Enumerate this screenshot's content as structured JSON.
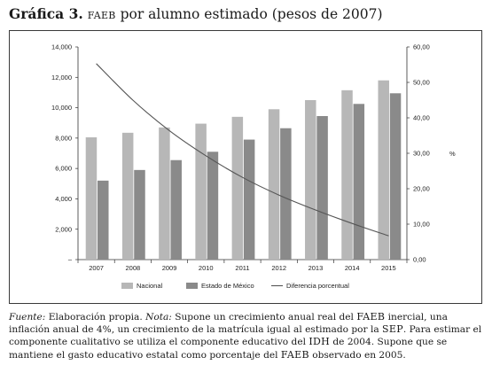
{
  "title": {
    "prefix": "Gráfica 3.",
    "abbr": "FAEB",
    "rest": " por alumno estimado (pesos de 2007)"
  },
  "chart_data": {
    "type": "bar",
    "categories": [
      "2007",
      "2008",
      "2009",
      "2010",
      "2011",
      "2012",
      "2013",
      "2014",
      "2015"
    ],
    "series": [
      {
        "name": "Nacional",
        "type": "bar",
        "axis": "left",
        "color": "#b7b7b7",
        "values": [
          8050,
          8350,
          8700,
          8950,
          9400,
          9900,
          10500,
          11150,
          11800
        ]
      },
      {
        "name": "Estado de México",
        "type": "bar",
        "axis": "left",
        "color": "#8a8a8a",
        "values": [
          5200,
          5900,
          6550,
          7100,
          7900,
          8650,
          9450,
          10250,
          10950
        ]
      },
      {
        "name": "Diferencia porcentual",
        "type": "line",
        "axis": "right",
        "color": "#555555",
        "values": [
          55.3,
          45.0,
          36.4,
          29.3,
          23.2,
          18.2,
          14.0,
          10.2,
          6.7
        ]
      }
    ],
    "y_left": {
      "ticks": [
        "–",
        "2,000",
        "4,000",
        "6,000",
        "8,000",
        "10,000",
        "12,000",
        "14,000"
      ],
      "lim": [
        0,
        14000
      ]
    },
    "y_right": {
      "ticks": [
        "0,00",
        "10,00",
        "20,00",
        "30,00",
        "40,00",
        "50,00",
        "60,00"
      ],
      "lim": [
        0,
        60
      ],
      "label": "%"
    },
    "legend_position": "bottom",
    "grid": false
  },
  "note": {
    "fuente_label": "Fuente:",
    "fuente_text": " Elaboración propia. ",
    "nota_label": "Nota:",
    "t1": " Supone un crecimiento anual real del ",
    "faeb1": "FAEB",
    "t2": " inercial, una inflación anual de 4%, un crecimiento de la matrícula igual al estimado por la ",
    "sep": "SEP",
    "t3": ". Para estimar el componente cualitativo se utiliza el componente educativo del ",
    "idh": "IDH",
    "t4": " de 2004. Supone que se mantiene el gasto educativo estatal como porcentaje del ",
    "faeb2": "FAEB",
    "t5": " observado en 2005."
  }
}
